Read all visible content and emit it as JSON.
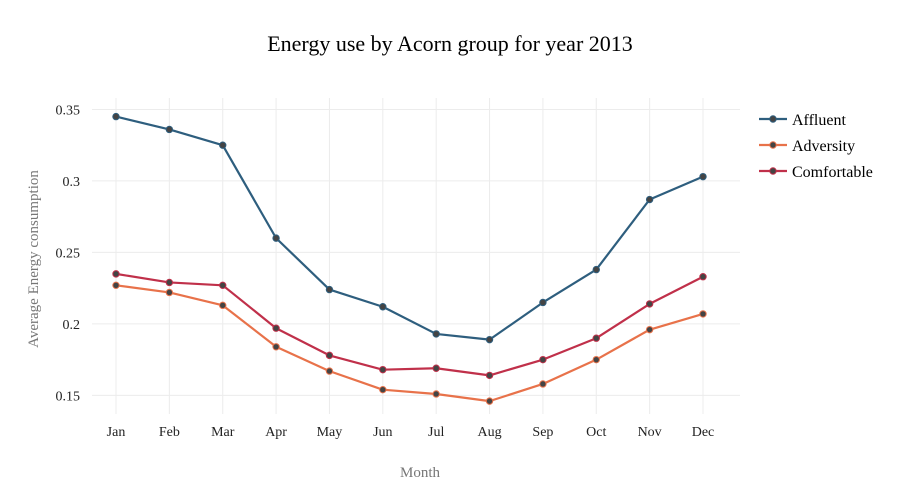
{
  "chart_data": {
    "type": "line",
    "title": "Energy use by Acorn group for year 2013",
    "xlabel": "Month",
    "ylabel": "Average Energy consumption",
    "categories": [
      "Jan",
      "Feb",
      "Mar",
      "Apr",
      "May",
      "Jun",
      "Jul",
      "Aug",
      "Sep",
      "Oct",
      "Nov",
      "Dec"
    ],
    "yticks": [
      0.15,
      0.2,
      0.25,
      0.3,
      0.35
    ],
    "ytick_labels": [
      "0.15",
      "0.2",
      "0.25",
      "0.3",
      "0.35"
    ],
    "ylim": [
      0.137,
      0.358
    ],
    "grid": true,
    "legend_position": "right",
    "series": [
      {
        "name": "Affluent",
        "color": "#2e5e7e",
        "values": [
          0.345,
          0.336,
          0.325,
          0.26,
          0.224,
          0.212,
          0.193,
          0.189,
          0.215,
          0.238,
          0.287,
          0.303
        ]
      },
      {
        "name": "Adversity",
        "color": "#e8724a",
        "values": [
          0.227,
          0.222,
          0.213,
          0.184,
          0.167,
          0.154,
          0.151,
          0.146,
          0.158,
          0.175,
          0.196,
          0.207
        ]
      },
      {
        "name": "Comfortable",
        "color": "#c0304a",
        "values": [
          0.235,
          0.229,
          0.227,
          0.197,
          0.178,
          0.168,
          0.169,
          0.164,
          0.175,
          0.19,
          0.214,
          0.233
        ]
      }
    ],
    "marker_color": "#444444"
  }
}
